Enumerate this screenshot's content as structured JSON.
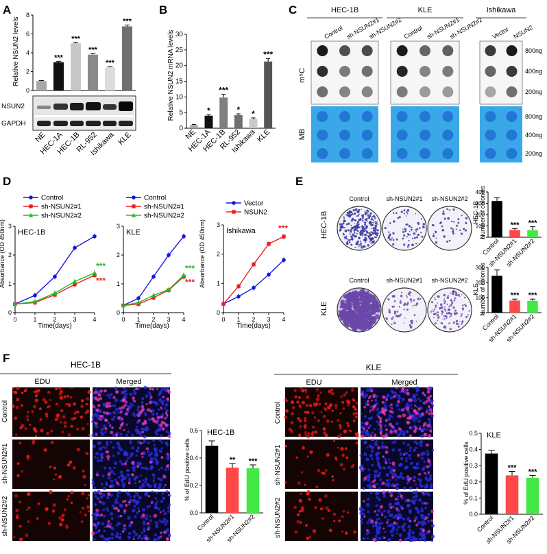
{
  "figure": {
    "panels": {
      "A": {
        "label": "A",
        "ylabel": "Relative NSUN2 levels",
        "categories": [
          "NE",
          "HEC-1A",
          "HEC-1B",
          "RL-952",
          "Ishikawa",
          "KLE"
        ],
        "blot_labels": [
          "NSUN2",
          "GAPDH"
        ]
      },
      "B": {
        "label": "B",
        "ylabel": "Relative NSUN2 mRNA levels"
      },
      "C": {
        "label": "C",
        "groups": [
          {
            "name": "HEC-1B",
            "lanes": [
              "Control",
              "sh-NSUN2#1",
              "sh-NSUN2#2"
            ]
          },
          {
            "name": "KLE",
            "lanes": [
              "Control",
              "sh-NSUN2#1",
              "sh-NSUN2#2"
            ]
          },
          {
            "name": "Ishikawa",
            "lanes": [
              "Vector",
              "NSUN2"
            ]
          }
        ],
        "row_labels": [
          "m⁵C",
          "MB"
        ],
        "amounts": [
          "800ng",
          "400ng",
          "200ng"
        ]
      },
      "D": {
        "label": "D",
        "ylabel": "Absorbance (OD 450nm)",
        "xlabel": "Time(days)"
      },
      "E": {
        "label": "E",
        "conditions": [
          "Control",
          "sh-NSUN2#1",
          "sh-NSUN2#2"
        ],
        "rows": [
          "HEC-1B",
          "KLE"
        ],
        "ylabel": "Number of colonies"
      },
      "F": {
        "label": "F",
        "groups": [
          "HEC-1B",
          "KLE"
        ],
        "columns": [
          "EDU",
          "Merged"
        ],
        "rows": [
          "Control",
          "sh-NSUN2#1",
          "sh-NSUN2#2"
        ],
        "ylabel": "% of EdU positive cells"
      }
    }
  },
  "chart_data": [
    {
      "id": "A-bar",
      "type": "bar",
      "categories": [
        "NE",
        "HEC-1A",
        "HEC-1B",
        "RL-952",
        "Ishikawa",
        "KLE"
      ],
      "values": [
        1.0,
        3.0,
        5.0,
        3.8,
        2.45,
        6.8
      ],
      "errors": [
        0.05,
        0.1,
        0.1,
        0.12,
        0.08,
        0.15
      ],
      "significance": [
        "",
        "***",
        "***",
        "***",
        "***",
        "***"
      ],
      "colors": [
        "#a8a8a8",
        "#111111",
        "#c8c8c8",
        "#8a8a8a",
        "#dcdcdc",
        "#707070"
      ],
      "ylabel": "Relative NSUN2 levels",
      "ylim": [
        0,
        8
      ],
      "yticks": [
        0,
        2,
        4,
        6,
        8
      ]
    },
    {
      "id": "B-bar",
      "type": "bar",
      "categories": [
        "NE",
        "HEC-1A",
        "HEC-1B",
        "RL-952",
        "Ishikawa",
        "KLE"
      ],
      "values": [
        1.0,
        4.0,
        9.8,
        4.2,
        3.0,
        21.3
      ],
      "errors": [
        0.2,
        0.3,
        1.0,
        0.4,
        0.3,
        0.9
      ],
      "significance": [
        "",
        "*",
        "***",
        "*",
        "*",
        "***"
      ],
      "colors": [
        "#a8a8a8",
        "#111111",
        "#808080",
        "#707070",
        "#c8c8c8",
        "#555555"
      ],
      "ylabel": "Relative NSUN2 mRNA levels",
      "ylim": [
        0,
        30
      ],
      "yticks": [
        0,
        5,
        10,
        15,
        20,
        25,
        30
      ]
    },
    {
      "id": "D-HEC1B",
      "type": "line",
      "title": "HEC-1B",
      "x": [
        0,
        1,
        2,
        3,
        4
      ],
      "series": [
        {
          "name": "Control",
          "values": [
            0.3,
            0.6,
            1.25,
            2.25,
            2.65
          ],
          "color": "#1515e0",
          "marker": "circle"
        },
        {
          "name": "sh-NSUN2#1",
          "values": [
            0.3,
            0.35,
            0.62,
            0.98,
            1.3
          ],
          "color": "#e82020",
          "marker": "square"
        },
        {
          "name": "sh-NSUN2#2",
          "values": [
            0.3,
            0.38,
            0.68,
            1.08,
            1.38
          ],
          "color": "#22bb22",
          "marker": "triangle"
        }
      ],
      "annotations": [
        {
          "text": "***",
          "color": "#22bb22"
        },
        {
          "text": "***",
          "color": "#e82020"
        }
      ],
      "ylabel": "Absorbance (OD 450nm)",
      "xlabel": "Time(days)",
      "ylim": [
        0,
        3
      ],
      "xlim": [
        0,
        4
      ],
      "yticks": [
        0,
        1,
        2,
        3
      ],
      "xticks": [
        0,
        1,
        2,
        3,
        4
      ]
    },
    {
      "id": "D-KLE",
      "type": "line",
      "title": "KLE",
      "x": [
        0,
        1,
        2,
        3,
        4
      ],
      "series": [
        {
          "name": "Control",
          "values": [
            0.25,
            0.5,
            1.25,
            2.0,
            2.65
          ],
          "color": "#1515e0",
          "marker": "circle"
        },
        {
          "name": "sh-NSUN2#1",
          "values": [
            0.25,
            0.3,
            0.52,
            0.78,
            1.25
          ],
          "color": "#e82020",
          "marker": "square"
        },
        {
          "name": "sh-NSUN2#2",
          "values": [
            0.25,
            0.35,
            0.6,
            0.8,
            1.3
          ],
          "color": "#22bb22",
          "marker": "triangle"
        }
      ],
      "annotations": [
        {
          "text": "***",
          "color": "#22bb22"
        },
        {
          "text": "***",
          "color": "#e82020"
        }
      ],
      "xlabel": "Time(days)",
      "ylim": [
        0,
        3
      ],
      "xlim": [
        0,
        4
      ],
      "yticks": [
        0,
        1,
        2,
        3
      ],
      "xticks": [
        0,
        1,
        2,
        3,
        4
      ]
    },
    {
      "id": "D-Ishikawa",
      "type": "line",
      "title": "Ishikawa",
      "x": [
        0,
        1,
        2,
        3,
        4
      ],
      "series": [
        {
          "name": "Vector",
          "values": [
            0.3,
            0.55,
            0.85,
            1.3,
            1.8
          ],
          "color": "#1515e0",
          "marker": "circle"
        },
        {
          "name": "NSUN2",
          "values": [
            0.3,
            0.9,
            1.65,
            2.35,
            2.6
          ],
          "color": "#e82020",
          "marker": "square"
        }
      ],
      "annotations": [
        {
          "text": "***",
          "color": "#e82020"
        }
      ],
      "ylabel": "Absorbance (OD 450nm)",
      "xlabel": "Time(days)",
      "ylim": [
        0,
        3
      ],
      "xlim": [
        0,
        4
      ],
      "yticks": [
        0,
        1,
        2,
        3
      ],
      "xticks": [
        0,
        1,
        2,
        3,
        4
      ]
    },
    {
      "id": "E-HEC1B",
      "type": "bar",
      "categories": [
        "Control",
        "sh-NSUN2#1",
        "sh-NSUN2#2"
      ],
      "values": [
        320,
        65,
        63
      ],
      "errors": [
        28,
        12,
        30
      ],
      "significance": [
        "",
        "***",
        "***"
      ],
      "colors": [
        "#000000",
        "#ff4848",
        "#44e844"
      ],
      "ylabel": "Number of colonies",
      "row_label": "HEC-1B",
      "ylim": [
        0,
        400
      ],
      "yticks": [
        0,
        100,
        200,
        300,
        400
      ]
    },
    {
      "id": "E-KLE",
      "type": "bar",
      "categories": [
        "Control",
        "sh-NSUN2#1",
        "sh-NSUN2#2"
      ],
      "values": [
        245,
        80,
        78
      ],
      "errors": [
        38,
        10,
        12
      ],
      "significance": [
        "",
        "***",
        "***"
      ],
      "colors": [
        "#000000",
        "#ff4848",
        "#44e844"
      ],
      "ylabel": "Number of colonies",
      "row_label": "KLE",
      "ylim": [
        0,
        300
      ],
      "yticks": [
        0,
        100,
        200,
        300
      ]
    },
    {
      "id": "F-HEC1B",
      "type": "bar",
      "title": "HEC-1B",
      "categories": [
        "Control",
        "sh-NSUN2#1",
        "sh-NSUN2#2"
      ],
      "values": [
        0.49,
        0.33,
        0.325
      ],
      "errors": [
        0.035,
        0.03,
        0.025
      ],
      "significance": [
        "",
        "**",
        "***"
      ],
      "colors": [
        "#000000",
        "#ff4848",
        "#44e844"
      ],
      "ylabel": "% of EdU positive cells",
      "ylim": [
        0,
        0.6
      ],
      "yticks": [
        0.0,
        0.2,
        0.4,
        0.6
      ]
    },
    {
      "id": "F-KLE",
      "type": "bar",
      "title": "KLE",
      "categories": [
        "Control",
        "sh-NSUN2#1",
        "sh-NSUN2#2"
      ],
      "values": [
        0.375,
        0.24,
        0.225
      ],
      "errors": [
        0.02,
        0.025,
        0.015
      ],
      "significance": [
        "",
        "***",
        "***"
      ],
      "colors": [
        "#000000",
        "#ff4848",
        "#44e844"
      ],
      "ylabel": "% of EdU positive cells",
      "ylim": [
        0,
        0.5
      ],
      "yticks": [
        0.0,
        0.1,
        0.2,
        0.3,
        0.4,
        0.5
      ]
    }
  ]
}
